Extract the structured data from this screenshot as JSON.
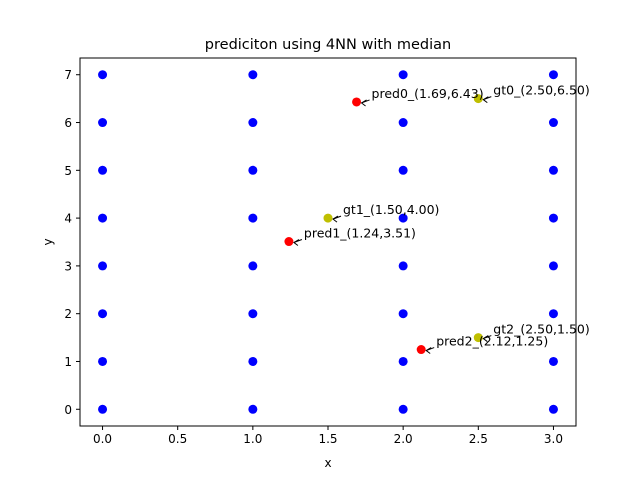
{
  "chart_data": {
    "type": "scatter",
    "title": "prediciton using 4NN with median",
    "xlabel": "x",
    "ylabel": "y",
    "xlim": [
      -0.15,
      3.15
    ],
    "ylim": [
      -0.35,
      7.35
    ],
    "xticks": [
      "0.0",
      "0.5",
      "1.0",
      "1.5",
      "2.0",
      "2.5",
      "3.0"
    ],
    "yticks": [
      "0",
      "1",
      "2",
      "3",
      "4",
      "5",
      "6",
      "7"
    ],
    "grid": false,
    "series": [
      {
        "color": "#0000ff",
        "points": [
          [
            0,
            0
          ],
          [
            0,
            1
          ],
          [
            0,
            2
          ],
          [
            0,
            3
          ],
          [
            0,
            4
          ],
          [
            0,
            5
          ],
          [
            0,
            6
          ],
          [
            0,
            7
          ],
          [
            1,
            0
          ],
          [
            1,
            1
          ],
          [
            1,
            2
          ],
          [
            1,
            3
          ],
          [
            1,
            4
          ],
          [
            1,
            5
          ],
          [
            1,
            6
          ],
          [
            1,
            7
          ],
          [
            2,
            0
          ],
          [
            2,
            1
          ],
          [
            2,
            2
          ],
          [
            2,
            3
          ],
          [
            2,
            4
          ],
          [
            2,
            5
          ],
          [
            2,
            6
          ],
          [
            2,
            7
          ],
          [
            3,
            0
          ],
          [
            3,
            1
          ],
          [
            3,
            2
          ],
          [
            3,
            3
          ],
          [
            3,
            4
          ],
          [
            3,
            5
          ],
          [
            3,
            6
          ],
          [
            3,
            7
          ]
        ]
      },
      {
        "color": "#bfbf00",
        "points": [
          [
            2.5,
            6.5
          ],
          [
            1.5,
            4.0
          ],
          [
            2.5,
            1.5
          ]
        ]
      },
      {
        "color": "#ff0000",
        "points": [
          [
            1.69,
            6.43
          ],
          [
            1.24,
            3.51
          ],
          [
            2.12,
            1.25
          ]
        ]
      }
    ],
    "annotations": [
      {
        "text": "gt0_(2.50,6.50)",
        "x": 2.5,
        "y": 6.5
      },
      {
        "text": "pred0_(1.69,6.43)",
        "x": 1.69,
        "y": 6.43
      },
      {
        "text": "gt1_(1.50,4.00)",
        "x": 1.5,
        "y": 4.0
      },
      {
        "text": "pred1_(1.24,3.51)",
        "x": 1.24,
        "y": 3.51
      },
      {
        "text": "gt2_(2.50,1.50)",
        "x": 2.5,
        "y": 1.5
      },
      {
        "text": "pred2_(2.12,1.25)",
        "x": 2.12,
        "y": 1.25
      }
    ]
  }
}
